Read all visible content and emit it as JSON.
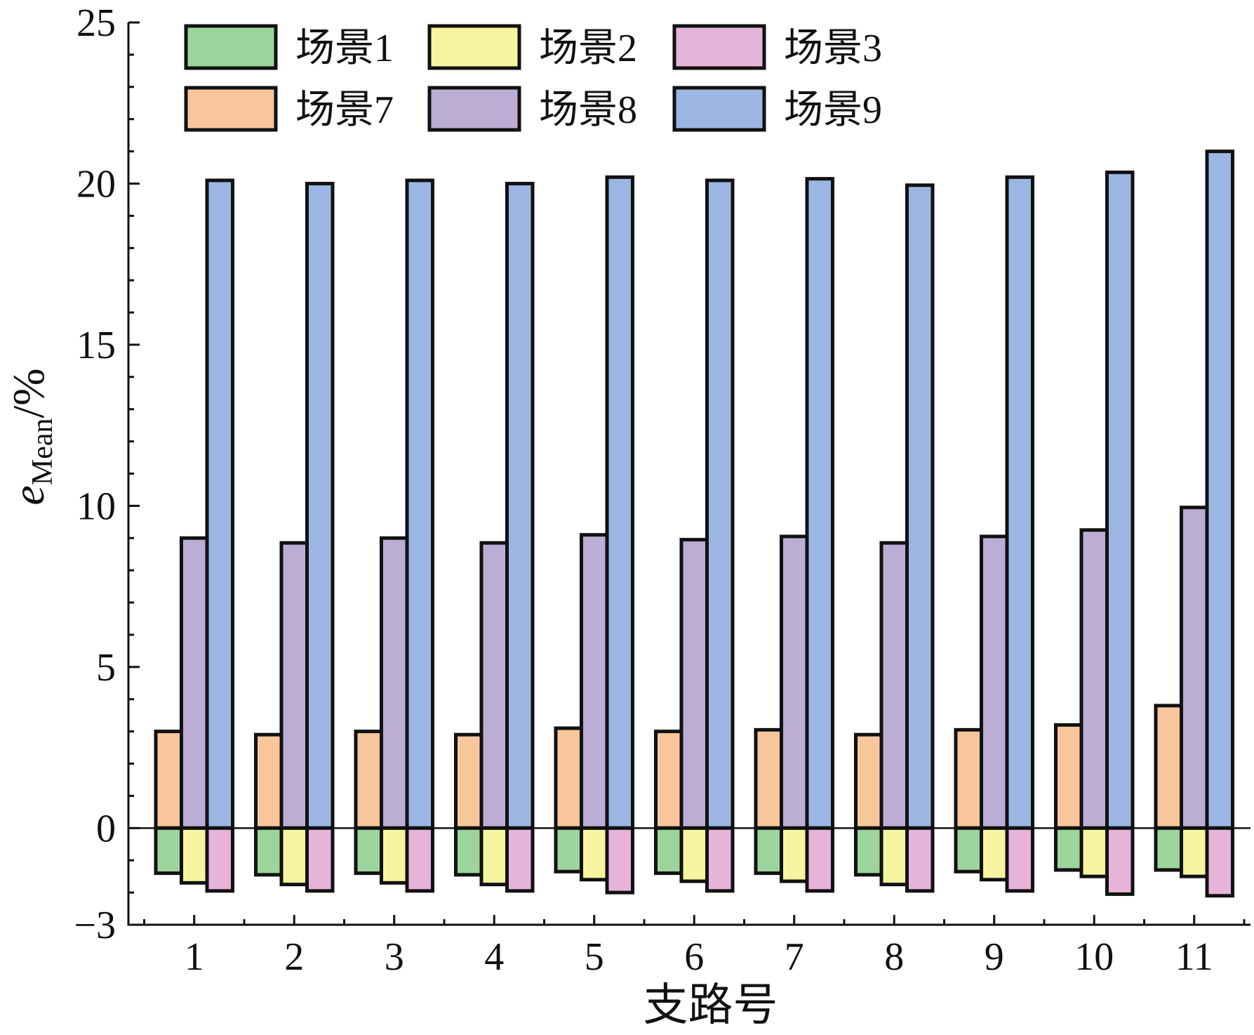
{
  "chart_data": {
    "type": "bar",
    "xlabel": "支路号",
    "ylabel_main": "e",
    "ylabel_sub": "Mean",
    "ylabel_suffix": "/%",
    "ylim": [
      -3,
      25
    ],
    "yticks": [
      -3,
      0,
      5,
      10,
      15,
      20,
      25
    ],
    "ytick_labels": [
      "−3",
      "0",
      "5",
      "10",
      "15",
      "20",
      "25"
    ],
    "categories": [
      "1",
      "2",
      "3",
      "4",
      "5",
      "6",
      "7",
      "8",
      "9",
      "10",
      "11"
    ],
    "legend_position": "top-left",
    "legend_columns": 3,
    "series": [
      {
        "name": "场景1",
        "color": "#9dd49b",
        "values": [
          -1.4,
          -1.45,
          -1.4,
          -1.45,
          -1.35,
          -1.4,
          -1.4,
          -1.45,
          -1.35,
          -1.3,
          -1.3
        ]
      },
      {
        "name": "场景2",
        "color": "#f7f4a1",
        "values": [
          -1.7,
          -1.75,
          -1.7,
          -1.75,
          -1.6,
          -1.65,
          -1.65,
          -1.75,
          -1.6,
          -1.5,
          -1.5
        ]
      },
      {
        "name": "场景3",
        "color": "#e6b4d9",
        "values": [
          -1.95,
          -1.95,
          -1.95,
          -1.95,
          -2.0,
          -1.95,
          -1.95,
          -1.95,
          -1.95,
          -2.05,
          -2.1
        ]
      },
      {
        "name": "场景7",
        "color": "#f7c79b",
        "values": [
          3.0,
          2.9,
          3.0,
          2.9,
          3.1,
          3.0,
          3.05,
          2.9,
          3.05,
          3.2,
          3.8
        ]
      },
      {
        "name": "场景8",
        "color": "#bcadd5",
        "values": [
          9.0,
          8.85,
          9.0,
          8.85,
          9.1,
          8.95,
          9.05,
          8.85,
          9.05,
          9.25,
          9.95
        ]
      },
      {
        "name": "场景9",
        "color": "#9bb6e2",
        "values": [
          20.1,
          20.0,
          20.1,
          20.0,
          20.2,
          20.1,
          20.15,
          19.95,
          20.2,
          20.35,
          21.0
        ]
      }
    ]
  }
}
